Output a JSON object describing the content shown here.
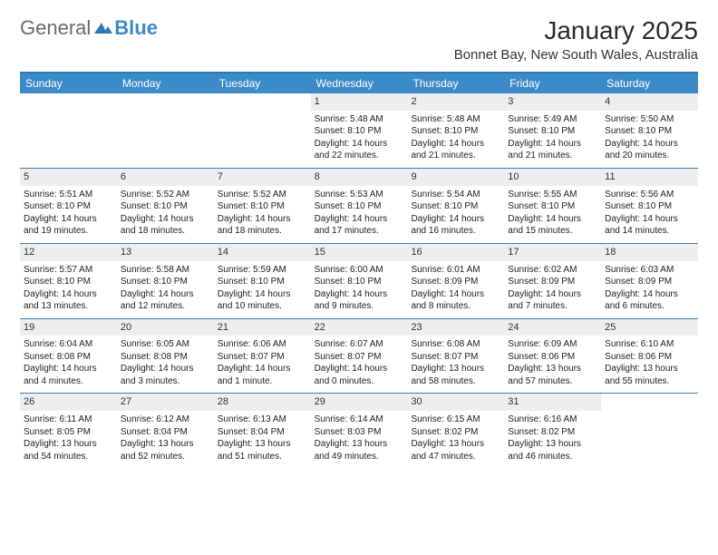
{
  "logo": {
    "text1": "General",
    "text2": "Blue"
  },
  "title": "January 2025",
  "subtitle": "Bonnet Bay, New South Wales, Australia",
  "header_bg": "#3b8bc9",
  "row_divider": "#3b7fb2",
  "daynum_bg": "#eceef0",
  "weekdays": [
    "Sunday",
    "Monday",
    "Tuesday",
    "Wednesday",
    "Thursday",
    "Friday",
    "Saturday"
  ],
  "weeks": [
    [
      null,
      null,
      null,
      {
        "n": "1",
        "sr": "5:48 AM",
        "ss": "8:10 PM",
        "dl": "14 hours and 22 minutes."
      },
      {
        "n": "2",
        "sr": "5:48 AM",
        "ss": "8:10 PM",
        "dl": "14 hours and 21 minutes."
      },
      {
        "n": "3",
        "sr": "5:49 AM",
        "ss": "8:10 PM",
        "dl": "14 hours and 21 minutes."
      },
      {
        "n": "4",
        "sr": "5:50 AM",
        "ss": "8:10 PM",
        "dl": "14 hours and 20 minutes."
      }
    ],
    [
      {
        "n": "5",
        "sr": "5:51 AM",
        "ss": "8:10 PM",
        "dl": "14 hours and 19 minutes."
      },
      {
        "n": "6",
        "sr": "5:52 AM",
        "ss": "8:10 PM",
        "dl": "14 hours and 18 minutes."
      },
      {
        "n": "7",
        "sr": "5:52 AM",
        "ss": "8:10 PM",
        "dl": "14 hours and 18 minutes."
      },
      {
        "n": "8",
        "sr": "5:53 AM",
        "ss": "8:10 PM",
        "dl": "14 hours and 17 minutes."
      },
      {
        "n": "9",
        "sr": "5:54 AM",
        "ss": "8:10 PM",
        "dl": "14 hours and 16 minutes."
      },
      {
        "n": "10",
        "sr": "5:55 AM",
        "ss": "8:10 PM",
        "dl": "14 hours and 15 minutes."
      },
      {
        "n": "11",
        "sr": "5:56 AM",
        "ss": "8:10 PM",
        "dl": "14 hours and 14 minutes."
      }
    ],
    [
      {
        "n": "12",
        "sr": "5:57 AM",
        "ss": "8:10 PM",
        "dl": "14 hours and 13 minutes."
      },
      {
        "n": "13",
        "sr": "5:58 AM",
        "ss": "8:10 PM",
        "dl": "14 hours and 12 minutes."
      },
      {
        "n": "14",
        "sr": "5:59 AM",
        "ss": "8:10 PM",
        "dl": "14 hours and 10 minutes."
      },
      {
        "n": "15",
        "sr": "6:00 AM",
        "ss": "8:10 PM",
        "dl": "14 hours and 9 minutes."
      },
      {
        "n": "16",
        "sr": "6:01 AM",
        "ss": "8:09 PM",
        "dl": "14 hours and 8 minutes."
      },
      {
        "n": "17",
        "sr": "6:02 AM",
        "ss": "8:09 PM",
        "dl": "14 hours and 7 minutes."
      },
      {
        "n": "18",
        "sr": "6:03 AM",
        "ss": "8:09 PM",
        "dl": "14 hours and 6 minutes."
      }
    ],
    [
      {
        "n": "19",
        "sr": "6:04 AM",
        "ss": "8:08 PM",
        "dl": "14 hours and 4 minutes."
      },
      {
        "n": "20",
        "sr": "6:05 AM",
        "ss": "8:08 PM",
        "dl": "14 hours and 3 minutes."
      },
      {
        "n": "21",
        "sr": "6:06 AM",
        "ss": "8:07 PM",
        "dl": "14 hours and 1 minute."
      },
      {
        "n": "22",
        "sr": "6:07 AM",
        "ss": "8:07 PM",
        "dl": "14 hours and 0 minutes."
      },
      {
        "n": "23",
        "sr": "6:08 AM",
        "ss": "8:07 PM",
        "dl": "13 hours and 58 minutes."
      },
      {
        "n": "24",
        "sr": "6:09 AM",
        "ss": "8:06 PM",
        "dl": "13 hours and 57 minutes."
      },
      {
        "n": "25",
        "sr": "6:10 AM",
        "ss": "8:06 PM",
        "dl": "13 hours and 55 minutes."
      }
    ],
    [
      {
        "n": "26",
        "sr": "6:11 AM",
        "ss": "8:05 PM",
        "dl": "13 hours and 54 minutes."
      },
      {
        "n": "27",
        "sr": "6:12 AM",
        "ss": "8:04 PM",
        "dl": "13 hours and 52 minutes."
      },
      {
        "n": "28",
        "sr": "6:13 AM",
        "ss": "8:04 PM",
        "dl": "13 hours and 51 minutes."
      },
      {
        "n": "29",
        "sr": "6:14 AM",
        "ss": "8:03 PM",
        "dl": "13 hours and 49 minutes."
      },
      {
        "n": "30",
        "sr": "6:15 AM",
        "ss": "8:02 PM",
        "dl": "13 hours and 47 minutes."
      },
      {
        "n": "31",
        "sr": "6:16 AM",
        "ss": "8:02 PM",
        "dl": "13 hours and 46 minutes."
      },
      null
    ]
  ],
  "labels": {
    "sunrise": "Sunrise:",
    "sunset": "Sunset:",
    "daylight": "Daylight:"
  }
}
